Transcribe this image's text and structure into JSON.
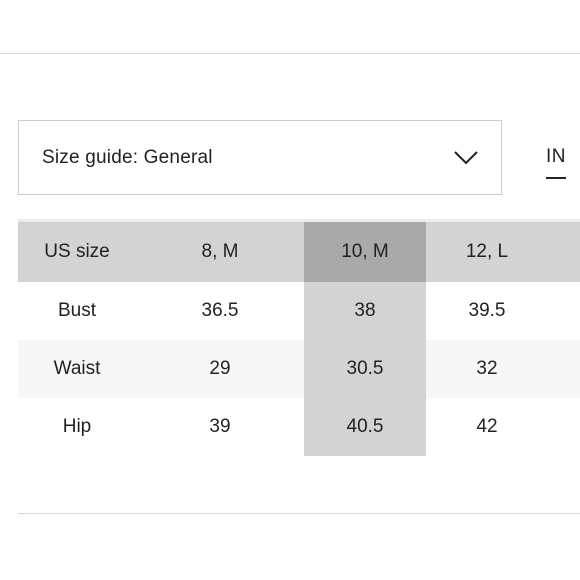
{
  "size_guide": {
    "label": "Size guide: General",
    "icon": "chevron-down-icon"
  },
  "unit_tab": {
    "label": "IN"
  },
  "table": {
    "headers": [
      "US size",
      "8, M",
      "10, M",
      "12, L"
    ],
    "rows": [
      {
        "label": "Bust",
        "values": [
          "36.5",
          "38",
          "39.5"
        ]
      },
      {
        "label": "Waist",
        "values": [
          "29",
          "30.5",
          "32"
        ]
      },
      {
        "label": "Hip",
        "values": [
          "39",
          "40.5",
          "42"
        ]
      }
    ],
    "selected_column": "10, M"
  },
  "colors": {
    "header_bg": "#d3d3d3",
    "selected_header_bg": "#a9a9a9",
    "selected_column_bg": "#d3d3d3",
    "alt_row_bg": "#f7f7f7",
    "text": "#222222"
  }
}
